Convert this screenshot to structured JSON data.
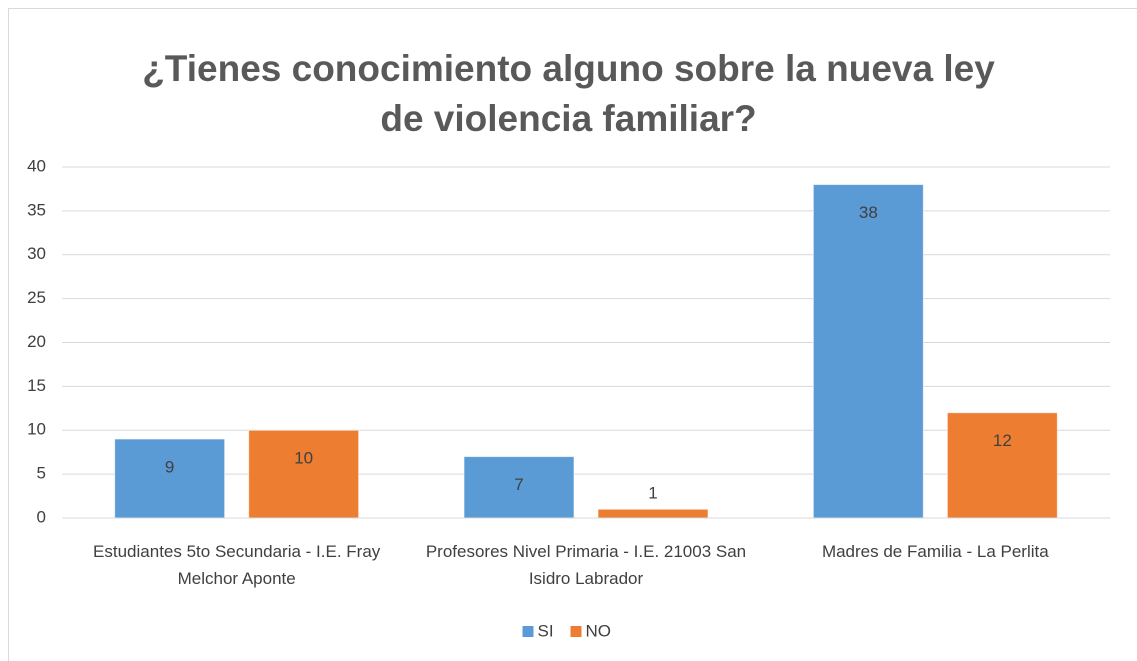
{
  "chart_data": {
    "type": "bar",
    "title": "¿Tienes conocimiento alguno sobre la nueva ley de violencia familiar?",
    "categories": [
      "Estudiantes 5to Secundaria - I.E. Fray Melchor Aponte",
      "Profesores Nivel Primaria - I.E. 21003 San Isidro Labrador",
      "Madres de Familia - La Perlita"
    ],
    "series": [
      {
        "name": "SI",
        "color": "#5b9bd5",
        "values": [
          9,
          7,
          38
        ]
      },
      {
        "name": "NO",
        "color": "#ed7d31",
        "values": [
          10,
          1,
          12
        ]
      }
    ],
    "ylim": [
      0,
      40
    ],
    "yticks": [
      0,
      5,
      10,
      15,
      20,
      25,
      30,
      35,
      40
    ],
    "grid": true,
    "legend": "bottom"
  }
}
